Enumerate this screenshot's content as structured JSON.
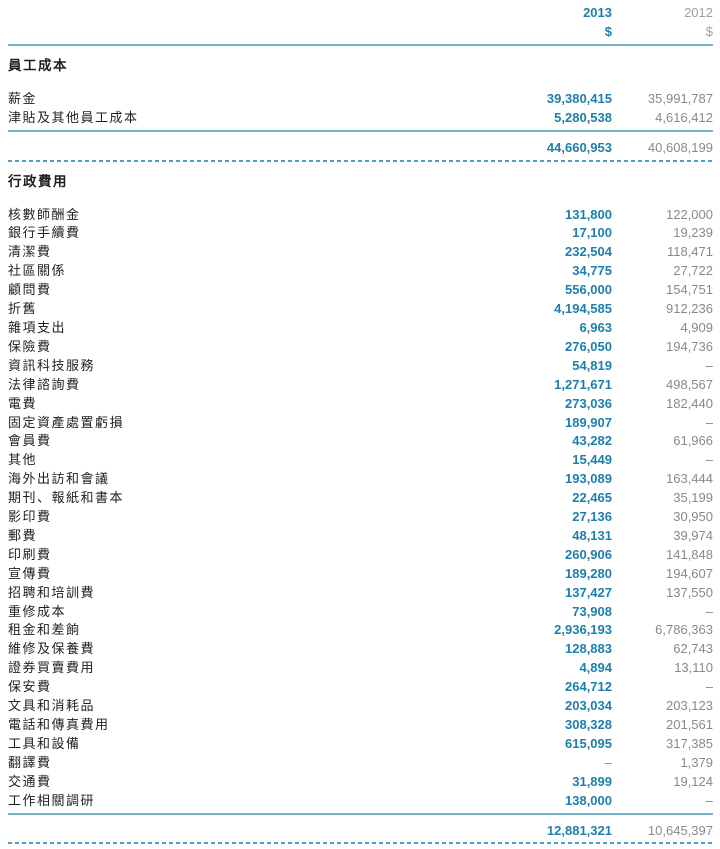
{
  "header": {
    "col_2013": "2013",
    "col_2012": "2012",
    "currency_2013": "$",
    "currency_2012": "$"
  },
  "placeholders": {
    "missing": "–"
  },
  "colors": {
    "accent_teal": "#1E7FAA",
    "line_solid": "#74B2CA",
    "line_dashed": "#4D9EC4",
    "value_gray": "#87898C",
    "header_gray": "#9EA0A3",
    "text_black": "#221E1F"
  },
  "sections": [
    {
      "title": "員工成本",
      "rows": [
        {
          "label": "薪金",
          "v2013": "39,380,415",
          "v2012": "35,991,787"
        },
        {
          "label": "津貼及其他員工成本",
          "v2013": "5,280,538",
          "v2012": "4,616,412"
        }
      ],
      "total": {
        "v2013": "44,660,953",
        "v2012": "40,608,199"
      }
    },
    {
      "title": "行政費用",
      "rows": [
        {
          "label": "核數師酬金",
          "v2013": "131,800",
          "v2012": "122,000"
        },
        {
          "label": "銀行手續費",
          "v2013": "17,100",
          "v2012": "19,239"
        },
        {
          "label": "清潔費",
          "v2013": "232,504",
          "v2012": "118,471"
        },
        {
          "label": "社區關係",
          "v2013": "34,775",
          "v2012": "27,722"
        },
        {
          "label": "顧問費",
          "v2013": "556,000",
          "v2012": "154,751"
        },
        {
          "label": "折舊",
          "v2013": "4,194,585",
          "v2012": "912,236"
        },
        {
          "label": "雜項支出",
          "v2013": "6,963",
          "v2012": "4,909"
        },
        {
          "label": "保險費",
          "v2013": "276,050",
          "v2012": "194,736"
        },
        {
          "label": "資訊科技服務",
          "v2013": "54,819",
          "v2012": "–"
        },
        {
          "label": "法律諮詢費",
          "v2013": "1,271,671",
          "v2012": "498,567"
        },
        {
          "label": "電費",
          "v2013": "273,036",
          "v2012": "182,440"
        },
        {
          "label": "固定資產處置虧損",
          "v2013": "189,907",
          "v2012": "–"
        },
        {
          "label": "會員費",
          "v2013": "43,282",
          "v2012": "61,966"
        },
        {
          "label": "其他",
          "v2013": "15,449",
          "v2012": "–"
        },
        {
          "label": "海外出訪和會議",
          "v2013": "193,089",
          "v2012": "163,444"
        },
        {
          "label": "期刊、報紙和書本",
          "v2013": "22,465",
          "v2012": "35,199"
        },
        {
          "label": "影印費",
          "v2013": "27,136",
          "v2012": "30,950"
        },
        {
          "label": "郵費",
          "v2013": "48,131",
          "v2012": "39,974"
        },
        {
          "label": "印刷費",
          "v2013": "260,906",
          "v2012": "141,848"
        },
        {
          "label": "宣傳費",
          "v2013": "189,280",
          "v2012": "194,607"
        },
        {
          "label": "招聘和培訓費",
          "v2013": "137,427",
          "v2012": "137,550"
        },
        {
          "label": "重修成本",
          "v2013": "73,908",
          "v2012": "–"
        },
        {
          "label": "租金和差餉",
          "v2013": "2,936,193",
          "v2012": "6,786,363"
        },
        {
          "label": "維修及保養費",
          "v2013": "128,883",
          "v2012": "62,743"
        },
        {
          "label": "證券買賣費用",
          "v2013": "4,894",
          "v2012": "13,110"
        },
        {
          "label": "保安費",
          "v2013": "264,712",
          "v2012": "–"
        },
        {
          "label": "文具和消耗品",
          "v2013": "203,034",
          "v2012": "203,123"
        },
        {
          "label": "電話和傳真費用",
          "v2013": "308,328",
          "v2012": "201,561"
        },
        {
          "label": "工具和設備",
          "v2013": "615,095",
          "v2012": "317,385"
        },
        {
          "label": "翻譯費",
          "v2013": "–",
          "v2012": "1,379"
        },
        {
          "label": "交通費",
          "v2013": "31,899",
          "v2012": "19,124"
        },
        {
          "label": "工作相關調研",
          "v2013": "138,000",
          "v2012": "–"
        }
      ],
      "total": {
        "v2013": "12,881,321",
        "v2012": "10,645,397"
      }
    }
  ]
}
